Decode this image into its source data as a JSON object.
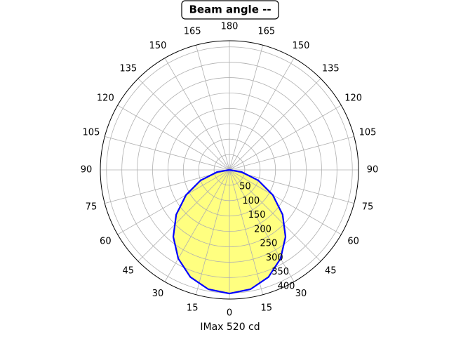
{
  "chart_data": {
    "type": "polar",
    "title": "Beam angle --",
    "xlabel": "IMax 520 cd",
    "angles": [
      -90,
      -80,
      -70,
      -60,
      -50,
      -40,
      -30,
      -20,
      -10,
      0,
      10,
      20,
      30,
      40,
      50,
      60,
      70,
      80,
      90
    ],
    "values": [
      0,
      41,
      100,
      163,
      226,
      284,
      333,
      371,
      394,
      402,
      394,
      371,
      333,
      284,
      226,
      163,
      100,
      41,
      0
    ],
    "line_color": "#0000ff",
    "fill_color": "#ffff80",
    "rlim": [
      0,
      420
    ],
    "rticks": [
      50,
      100,
      150,
      200,
      250,
      300,
      350,
      400
    ],
    "thetaticks": [
      0,
      15,
      30,
      45,
      60,
      75,
      90,
      105,
      120,
      135,
      150,
      165,
      180,
      {
        "value": -165,
        "label": "165"
      },
      {
        "value": -150,
        "label": "150"
      },
      {
        "value": -135,
        "label": "135"
      },
      {
        "value": -120,
        "label": "120"
      },
      {
        "value": -105,
        "label": "105"
      },
      {
        "value": -90,
        "label": "90"
      },
      {
        "value": -75,
        "label": "75"
      },
      {
        "value": -60,
        "label": "60"
      },
      {
        "value": -45,
        "label": "45"
      },
      {
        "value": -30,
        "label": "30"
      },
      {
        "value": -15,
        "label": "15"
      }
    ],
    "grid": true
  }
}
